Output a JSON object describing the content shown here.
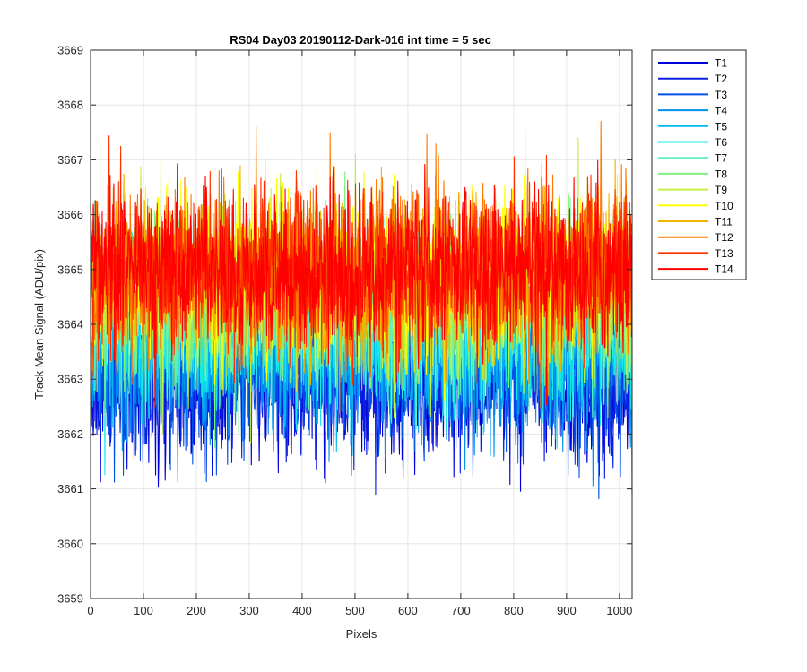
{
  "chart_data": {
    "type": "line",
    "title": "RS04 Day03 20190112-Dark-016 int time = 5 sec",
    "xlabel": "Pixels",
    "ylabel": "Track Mean Signal (ADU/pix)",
    "xlim": [
      0,
      1024
    ],
    "ylim": [
      3659,
      3669
    ],
    "xticks": [
      0,
      100,
      200,
      300,
      400,
      500,
      600,
      700,
      800,
      900,
      1000
    ],
    "yticks": [
      3659,
      3660,
      3661,
      3662,
      3663,
      3664,
      3665,
      3666,
      3667,
      3668,
      3669
    ],
    "grid": true,
    "legend_position": "outside-top-right",
    "series": [
      {
        "name": "T1",
        "color": "#0000d8",
        "mean": 3663.0,
        "noise": 0.75
      },
      {
        "name": "T2",
        "color": "#0a1fdf",
        "mean": 3663.1,
        "noise": 0.75
      },
      {
        "name": "T3",
        "color": "#0050e8",
        "mean": 3663.3,
        "noise": 0.75
      },
      {
        "name": "T4",
        "color": "#0090f0",
        "mean": 3663.5,
        "noise": 0.75
      },
      {
        "name": "T5",
        "color": "#00b8f4",
        "mean": 3663.8,
        "noise": 0.75
      },
      {
        "name": "T6",
        "color": "#19e8e8",
        "mean": 3664.0,
        "noise": 0.75
      },
      {
        "name": "T7",
        "color": "#5af0c0",
        "mean": 3664.2,
        "noise": 0.75
      },
      {
        "name": "T8",
        "color": "#80f080",
        "mean": 3664.4,
        "noise": 0.75
      },
      {
        "name": "T9",
        "color": "#c4f040",
        "mean": 3664.6,
        "noise": 0.75
      },
      {
        "name": "T10",
        "color": "#ffff00",
        "mean": 3664.8,
        "noise": 0.75
      },
      {
        "name": "T11",
        "color": "#f0b400",
        "mean": 3664.9,
        "noise": 0.75
      },
      {
        "name": "T12",
        "color": "#ff7800",
        "mean": 3665.0,
        "noise": 0.75
      },
      {
        "name": "T13",
        "color": "#ff3000",
        "mean": 3665.0,
        "noise": 0.75
      },
      {
        "name": "T14",
        "color": "#ff0000",
        "mean": 3665.0,
        "noise": 0.75
      }
    ]
  }
}
